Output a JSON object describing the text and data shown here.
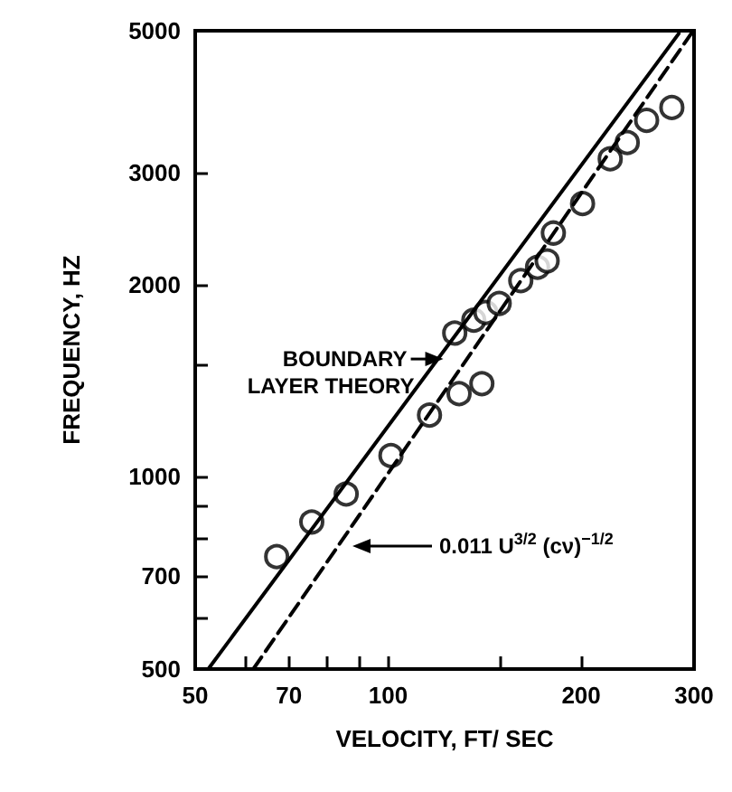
{
  "chart_data": {
    "type": "scatter",
    "xlabel": "VELOCITY, FT/ SEC",
    "ylabel": "FREQUENCY, HZ",
    "log": "xy",
    "xlim": [
      50,
      300
    ],
    "ylim": [
      500,
      5000
    ],
    "xticks": [
      50,
      {
        "value": 60,
        "label": null
      },
      70,
      {
        "value": 80,
        "label": null
      },
      {
        "value": 90,
        "label": null
      },
      100,
      {
        "value": 150,
        "label": null
      },
      200,
      300
    ],
    "yticks": [
      500,
      {
        "value": 600,
        "label": null
      },
      700,
      {
        "value": 800,
        "label": null
      },
      {
        "value": 900,
        "label": null
      },
      1000,
      {
        "value": 1500,
        "label": null
      },
      2000,
      3000,
      5000
    ],
    "grid": false,
    "series": [
      {
        "color": "#000000",
        "marker": "circle",
        "x": [
          67,
          76,
          86,
          101,
          116,
          129,
          140,
          127,
          136,
          142,
          149,
          161,
          171,
          177,
          181,
          201,
          222,
          236,
          253,
          277
        ],
        "values": [
          750,
          850,
          940,
          1080,
          1250,
          1350,
          1400,
          1680,
          1760,
          1810,
          1870,
          2030,
          2130,
          2180,
          2410,
          2680,
          3150,
          3340,
          3620,
          3790
        ]
      },
      {
        "type": "line",
        "marker": "none",
        "color": "#000000",
        "line_style": "solid",
        "x": [
          52.4,
          284
        ],
        "values": [
          500,
          4950
        ]
      },
      {
        "type": "line",
        "marker": "none",
        "color": "#000000",
        "line_style": "dashed",
        "x": [
          61.6,
          297
        ],
        "values": [
          500,
          4950
        ]
      }
    ],
    "annotations": [
      {
        "text": "BOUNDARY LAYER THEORY",
        "x": 123.5,
        "y": 1530
      },
      "0.011 U$^{3/2}$ (cν)$^{−1/2}$"
    ]
  }
}
